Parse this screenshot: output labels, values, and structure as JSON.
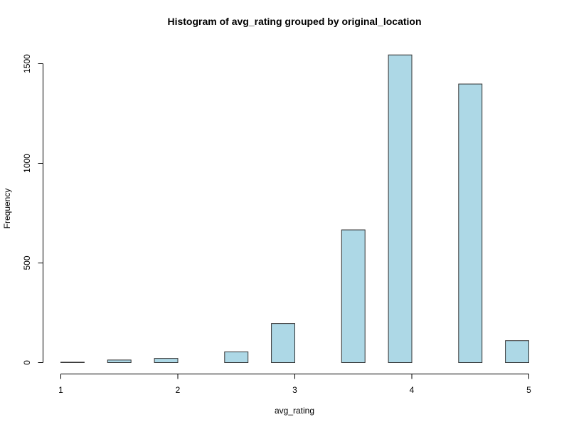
{
  "chart_data": {
    "type": "bar",
    "title": "Histogram of avg_rating grouped by original_location",
    "xlabel": "avg_rating",
    "ylabel": "Frequency",
    "xlim": [
      1,
      5
    ],
    "ylim": [
      0,
      1500
    ],
    "x_ticks": [
      "1",
      "2",
      "3",
      "4",
      "5"
    ],
    "y_ticks": [
      "0",
      "500",
      "1000",
      "1500"
    ],
    "bar_color": "#add8e6",
    "bin_edges": [
      1.0,
      1.2,
      1.4,
      1.6,
      1.8,
      2.0,
      2.2,
      2.4,
      2.6,
      2.8,
      3.0,
      3.2,
      3.4,
      3.6,
      3.8,
      4.0,
      4.2,
      4.4,
      4.6,
      4.8,
      5.0
    ],
    "values": [
      2,
      0,
      13,
      0,
      21,
      0,
      0,
      54,
      0,
      196,
      0,
      0,
      666,
      0,
      1544,
      0,
      0,
      1398,
      0,
      110
    ]
  }
}
